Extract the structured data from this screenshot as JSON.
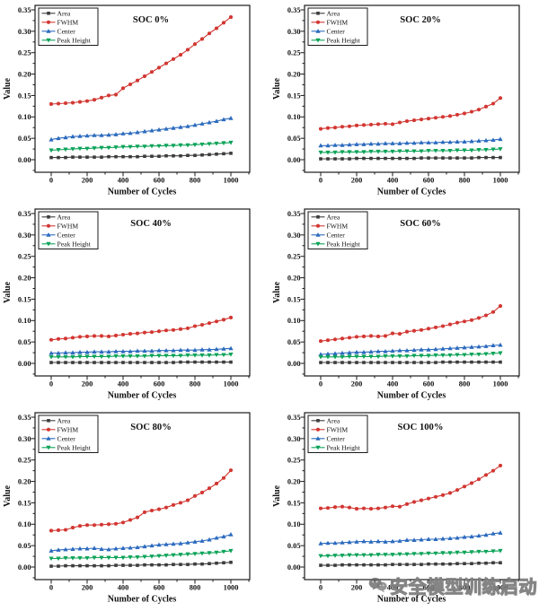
{
  "figure": {
    "background": "#ffffff",
    "text_color": "#111111"
  },
  "watermark": {
    "text": "安全模型训练启动",
    "icon": "wechat-icon",
    "color": "#6e6e6e"
  },
  "chart_data": {
    "type": "line",
    "xlabel": "Number of Cycles",
    "ylabel": "Value",
    "x": [
      0,
      40,
      80,
      120,
      160,
      200,
      240,
      280,
      320,
      360,
      400,
      440,
      480,
      520,
      560,
      600,
      640,
      680,
      720,
      760,
      800,
      840,
      880,
      920,
      960,
      1000
    ],
    "axes": {
      "xlim": [
        -90,
        1105
      ],
      "ylim": [
        -0.029,
        0.365
      ],
      "xticks": [
        0,
        200,
        400,
        600,
        800,
        1000
      ],
      "xtick_labels": [
        "0",
        "200",
        "400",
        "600",
        "800",
        "1000"
      ],
      "xticks_minor": [
        100,
        300,
        500,
        700,
        900,
        1100
      ],
      "yticks": [
        0,
        0.05,
        0.1,
        0.15,
        0.2,
        0.25,
        0.3,
        0.35
      ],
      "ytick_labels": [
        "0.00",
        "0.05",
        "0.10",
        "0.15",
        "0.20",
        "0.25",
        "0.30",
        "0.35"
      ],
      "yticks_minor": [
        -0.025,
        0.025,
        0.075,
        0.125,
        0.175,
        0.225,
        0.275,
        0.325
      ],
      "grid": false,
      "legend_position": "top-left"
    },
    "series_meta": [
      {
        "name": "Area",
        "color": "#3c3c3c",
        "marker": "square"
      },
      {
        "name": "FWHM",
        "color": "#d23732",
        "marker": "circle"
      },
      {
        "name": "Center",
        "color": "#2b6abe",
        "marker": "triangle-up"
      },
      {
        "name": "Peak Height",
        "color": "#0ca358",
        "marker": "triangle-down"
      }
    ],
    "panels": [
      {
        "title": "SOC 0%",
        "series": [
          {
            "name": "Area",
            "values": [
              0.005,
              0.005,
              0.005,
              0.006,
              0.006,
              0.006,
              0.006,
              0.006,
              0.007,
              0.007,
              0.007,
              0.007,
              0.007,
              0.008,
              0.008,
              0.008,
              0.009,
              0.009,
              0.009,
              0.01,
              0.01,
              0.011,
              0.012,
              0.013,
              0.014,
              0.015
            ]
          },
          {
            "name": "FWHM",
            "values": [
              0.13,
              0.131,
              0.132,
              0.133,
              0.135,
              0.137,
              0.14,
              0.145,
              0.15,
              0.152,
              0.167,
              0.176,
              0.185,
              0.195,
              0.205,
              0.215,
              0.225,
              0.235,
              0.245,
              0.257,
              0.27,
              0.282,
              0.295,
              0.307,
              0.32,
              0.333
            ]
          },
          {
            "name": "Center",
            "values": [
              0.047,
              0.05,
              0.052,
              0.054,
              0.055,
              0.056,
              0.057,
              0.057,
              0.058,
              0.059,
              0.061,
              0.062,
              0.064,
              0.066,
              0.068,
              0.07,
              0.072,
              0.074,
              0.076,
              0.078,
              0.081,
              0.084,
              0.087,
              0.09,
              0.094,
              0.097
            ]
          },
          {
            "name": "Peak Height",
            "values": [
              0.022,
              0.023,
              0.024,
              0.025,
              0.026,
              0.026,
              0.027,
              0.028,
              0.028,
              0.029,
              0.03,
              0.03,
              0.031,
              0.031,
              0.032,
              0.032,
              0.033,
              0.033,
              0.034,
              0.034,
              0.035,
              0.036,
              0.037,
              0.038,
              0.039,
              0.04
            ]
          }
        ]
      },
      {
        "title": "SOC 20%",
        "series": [
          {
            "name": "Area",
            "values": [
              0.002,
              0.002,
              0.002,
              0.002,
              0.002,
              0.003,
              0.003,
              0.003,
              0.003,
              0.003,
              0.003,
              0.003,
              0.003,
              0.003,
              0.004,
              0.004,
              0.004,
              0.004,
              0.004,
              0.004,
              0.004,
              0.004,
              0.005,
              0.005,
              0.005,
              0.005
            ]
          },
          {
            "name": "FWHM",
            "values": [
              0.072,
              0.074,
              0.075,
              0.077,
              0.078,
              0.08,
              0.081,
              0.082,
              0.083,
              0.084,
              0.083,
              0.087,
              0.09,
              0.092,
              0.094,
              0.096,
              0.098,
              0.1,
              0.102,
              0.105,
              0.108,
              0.112,
              0.117,
              0.124,
              0.131,
              0.144
            ]
          },
          {
            "name": "Center",
            "values": [
              0.033,
              0.033,
              0.034,
              0.034,
              0.035,
              0.036,
              0.036,
              0.037,
              0.037,
              0.038,
              0.038,
              0.038,
              0.039,
              0.039,
              0.04,
              0.04,
              0.04,
              0.041,
              0.041,
              0.042,
              0.042,
              0.043,
              0.044,
              0.045,
              0.046,
              0.048
            ]
          },
          {
            "name": "Peak Height",
            "values": [
              0.017,
              0.017,
              0.017,
              0.018,
              0.018,
              0.018,
              0.018,
              0.019,
              0.019,
              0.019,
              0.019,
              0.02,
              0.02,
              0.02,
              0.02,
              0.021,
              0.021,
              0.021,
              0.021,
              0.022,
              0.022,
              0.022,
              0.023,
              0.023,
              0.024,
              0.025
            ]
          }
        ]
      },
      {
        "title": "SOC 40%",
        "series": [
          {
            "name": "Area",
            "values": [
              0.002,
              0.002,
              0.002,
              0.002,
              0.002,
              0.002,
              0.002,
              0.002,
              0.002,
              0.002,
              0.002,
              0.002,
              0.002,
              0.002,
              0.002,
              0.002,
              0.002,
              0.002,
              0.003,
              0.003,
              0.003,
              0.003,
              0.003,
              0.003,
              0.003,
              0.003
            ]
          },
          {
            "name": "FWHM",
            "values": [
              0.055,
              0.057,
              0.058,
              0.06,
              0.062,
              0.063,
              0.064,
              0.064,
              0.063,
              0.065,
              0.067,
              0.069,
              0.07,
              0.072,
              0.073,
              0.075,
              0.077,
              0.078,
              0.08,
              0.082,
              0.087,
              0.09,
              0.094,
              0.098,
              0.102,
              0.107
            ]
          },
          {
            "name": "Center",
            "values": [
              0.024,
              0.024,
              0.025,
              0.025,
              0.026,
              0.026,
              0.027,
              0.027,
              0.027,
              0.028,
              0.028,
              0.028,
              0.029,
              0.029,
              0.029,
              0.03,
              0.03,
              0.03,
              0.031,
              0.031,
              0.031,
              0.032,
              0.032,
              0.033,
              0.034,
              0.035
            ]
          },
          {
            "name": "Peak Height",
            "values": [
              0.015,
              0.015,
              0.015,
              0.015,
              0.016,
              0.016,
              0.016,
              0.016,
              0.016,
              0.017,
              0.017,
              0.017,
              0.017,
              0.017,
              0.018,
              0.018,
              0.018,
              0.018,
              0.018,
              0.019,
              0.019,
              0.019,
              0.019,
              0.02,
              0.02,
              0.021
            ]
          }
        ]
      },
      {
        "title": "SOC 60%",
        "series": [
          {
            "name": "Area",
            "values": [
              0.002,
              0.002,
              0.002,
              0.002,
              0.002,
              0.002,
              0.002,
              0.002,
              0.002,
              0.002,
              0.002,
              0.002,
              0.002,
              0.002,
              0.002,
              0.002,
              0.002,
              0.003,
              0.003,
              0.003,
              0.003,
              0.003,
              0.003,
              0.003,
              0.003,
              0.003
            ]
          },
          {
            "name": "FWHM",
            "values": [
              0.052,
              0.054,
              0.056,
              0.058,
              0.06,
              0.062,
              0.063,
              0.064,
              0.063,
              0.064,
              0.07,
              0.069,
              0.074,
              0.076,
              0.078,
              0.081,
              0.084,
              0.087,
              0.091,
              0.095,
              0.098,
              0.101,
              0.106,
              0.112,
              0.12,
              0.134
            ]
          },
          {
            "name": "Center",
            "values": [
              0.021,
              0.022,
              0.023,
              0.024,
              0.025,
              0.026,
              0.026,
              0.027,
              0.028,
              0.028,
              0.029,
              0.03,
              0.03,
              0.031,
              0.032,
              0.032,
              0.033,
              0.034,
              0.035,
              0.036,
              0.037,
              0.038,
              0.039,
              0.04,
              0.042,
              0.043
            ]
          },
          {
            "name": "Peak Height",
            "values": [
              0.015,
              0.015,
              0.015,
              0.015,
              0.016,
              0.016,
              0.016,
              0.016,
              0.016,
              0.017,
              0.017,
              0.017,
              0.017,
              0.018,
              0.018,
              0.018,
              0.019,
              0.019,
              0.019,
              0.02,
              0.02,
              0.021,
              0.021,
              0.022,
              0.023,
              0.024
            ]
          }
        ]
      },
      {
        "title": "SOC 80%",
        "series": [
          {
            "name": "Area",
            "values": [
              0.002,
              0.002,
              0.003,
              0.003,
              0.003,
              0.003,
              0.003,
              0.003,
              0.003,
              0.004,
              0.004,
              0.004,
              0.004,
              0.005,
              0.005,
              0.005,
              0.005,
              0.006,
              0.006,
              0.006,
              0.007,
              0.007,
              0.008,
              0.009,
              0.01,
              0.011
            ]
          },
          {
            "name": "FWHM",
            "values": [
              0.085,
              0.086,
              0.087,
              0.092,
              0.096,
              0.098,
              0.098,
              0.099,
              0.1,
              0.101,
              0.104,
              0.11,
              0.116,
              0.128,
              0.132,
              0.135,
              0.139,
              0.145,
              0.15,
              0.156,
              0.166,
              0.174,
              0.184,
              0.195,
              0.208,
              0.226
            ]
          },
          {
            "name": "Center",
            "values": [
              0.038,
              0.04,
              0.041,
              0.042,
              0.043,
              0.043,
              0.044,
              0.042,
              0.041,
              0.043,
              0.044,
              0.045,
              0.046,
              0.048,
              0.05,
              0.052,
              0.053,
              0.054,
              0.055,
              0.057,
              0.059,
              0.061,
              0.064,
              0.068,
              0.071,
              0.076
            ]
          },
          {
            "name": "Peak Height",
            "values": [
              0.02,
              0.02,
              0.021,
              0.021,
              0.021,
              0.021,
              0.022,
              0.022,
              0.022,
              0.022,
              0.022,
              0.023,
              0.023,
              0.024,
              0.025,
              0.026,
              0.027,
              0.028,
              0.029,
              0.03,
              0.031,
              0.032,
              0.033,
              0.034,
              0.036,
              0.038
            ]
          }
        ]
      },
      {
        "title": "SOC 100%",
        "series": [
          {
            "name": "Area",
            "values": [
              0.004,
              0.004,
              0.004,
              0.005,
              0.005,
              0.005,
              0.005,
              0.005,
              0.005,
              0.005,
              0.006,
              0.006,
              0.006,
              0.006,
              0.006,
              0.007,
              0.007,
              0.007,
              0.007,
              0.008,
              0.008,
              0.008,
              0.009,
              0.009,
              0.01,
              0.01
            ]
          },
          {
            "name": "FWHM",
            "values": [
              0.137,
              0.138,
              0.14,
              0.141,
              0.139,
              0.136,
              0.137,
              0.136,
              0.137,
              0.139,
              0.142,
              0.141,
              0.147,
              0.152,
              0.156,
              0.16,
              0.164,
              0.168,
              0.173,
              0.18,
              0.188,
              0.196,
              0.205,
              0.215,
              0.225,
              0.237
            ]
          },
          {
            "name": "Center",
            "values": [
              0.055,
              0.056,
              0.056,
              0.057,
              0.058,
              0.059,
              0.06,
              0.059,
              0.06,
              0.059,
              0.06,
              0.061,
              0.063,
              0.063,
              0.064,
              0.065,
              0.065,
              0.066,
              0.067,
              0.068,
              0.07,
              0.071,
              0.073,
              0.075,
              0.078,
              0.08
            ]
          },
          {
            "name": "Peak Height",
            "values": [
              0.026,
              0.026,
              0.027,
              0.027,
              0.028,
              0.028,
              0.028,
              0.028,
              0.029,
              0.029,
              0.029,
              0.03,
              0.03,
              0.031,
              0.031,
              0.032,
              0.032,
              0.033,
              0.033,
              0.034,
              0.034,
              0.035,
              0.036,
              0.036,
              0.037,
              0.038
            ]
          }
        ]
      }
    ]
  }
}
